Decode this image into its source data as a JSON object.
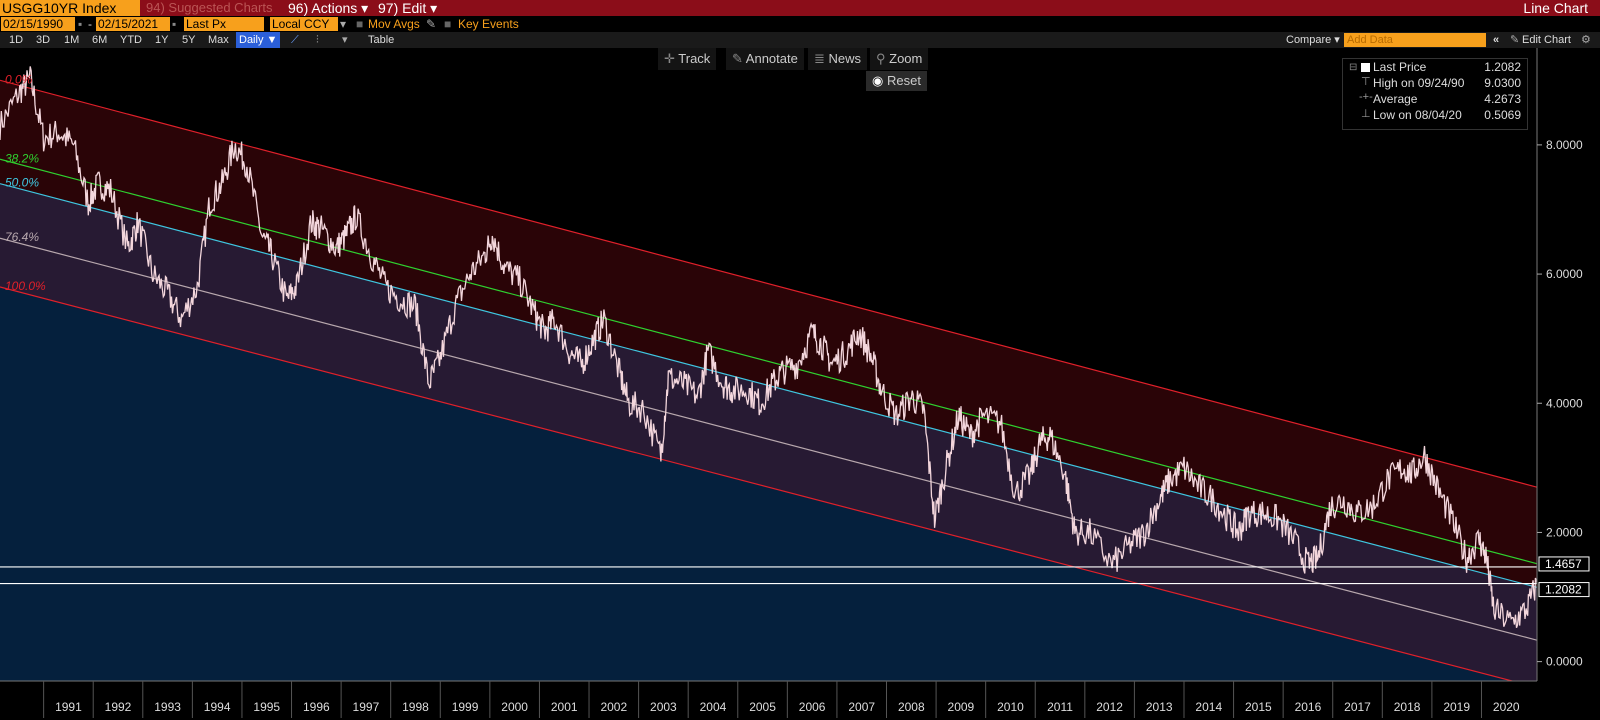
{
  "header": {
    "ticker": "USGG10YR Index",
    "suggested": "94) Suggested Charts",
    "actions": "96) Actions ▾",
    "edit": "97) Edit ▾",
    "chart_type_label": "Line Chart"
  },
  "controls": {
    "start_date": "02/15/1990",
    "end_date": "02/15/2021",
    "field": "Last Px",
    "currency": "Local CCY",
    "mov_avgs": "Mov Avgs",
    "key_events": "Key Events"
  },
  "periods": [
    "1D",
    "3D",
    "1M",
    "6M",
    "YTD",
    "1Y",
    "5Y",
    "Max"
  ],
  "frequency": "Daily ▼",
  "table_label": "Table",
  "compare_label": "Compare ▾",
  "add_data_placeholder": "Add Data",
  "edit_chart": "Edit Chart",
  "tools": {
    "track": "Track",
    "annotate": "Annotate",
    "news": "News",
    "zoom": "Zoom",
    "reset": "Reset"
  },
  "legend": {
    "last_label": "Last Price",
    "last_value": "1.2082",
    "high_label": "High on 09/24/90",
    "high_value": "9.0300",
    "avg_label": "Average",
    "avg_value": "4.2673",
    "low_label": "Low on 08/04/20",
    "low_value": "0.5069"
  },
  "colors": {
    "background": "#000000",
    "header_red": "#8b0d19",
    "field_orange": "#f7a01c",
    "price_line": "#f3d6dc",
    "channel_red": "#e0202a",
    "fib_green": "#2fd12f",
    "fib_cyan": "#3fc6e0",
    "fib_grey": "#b8a8ae"
  },
  "chart_data": {
    "type": "line",
    "series": [
      {
        "x": [
          1990.12,
          1990.5,
          1990.73,
          1991.0,
          1991.3,
          1991.6,
          1991.9,
          1992.1,
          1992.35,
          1992.7,
          1992.9,
          1993.2,
          1993.5,
          1993.78,
          1994.1,
          1994.35,
          1994.6,
          1994.85,
          1995.1,
          1995.4,
          1995.6,
          1995.9,
          1996.1,
          1996.4,
          1996.6,
          1996.9,
          1997.1,
          1997.3,
          1997.6,
          1997.9,
          1998.2,
          1998.5,
          1998.77,
          1999.0,
          1999.3,
          1999.6,
          1999.9,
          2000.05,
          2000.3,
          2000.6,
          2000.9,
          2001.1,
          2001.3,
          2001.6,
          2001.85,
          2002.1,
          2002.3,
          2002.6,
          2002.8,
          2003.1,
          2003.45,
          2003.6,
          2003.9,
          2004.2,
          2004.4,
          2004.7,
          2004.9,
          2005.2,
          2005.45,
          2005.7,
          2005.9,
          2006.2,
          2006.5,
          2006.7,
          2006.9,
          2007.2,
          2007.45,
          2007.7,
          2007.9,
          2008.2,
          2008.5,
          2008.75,
          2008.97,
          2009.2,
          2009.45,
          2009.7,
          2009.95,
          2010.3,
          2010.6,
          2010.9,
          2011.1,
          2011.3,
          2011.6,
          2011.8,
          2012.1,
          2012.55,
          2012.9,
          2013.2,
          2013.5,
          2013.7,
          2014.0,
          2014.3,
          2014.6,
          2014.9,
          2015.1,
          2015.3,
          2015.6,
          2015.9,
          2016.2,
          2016.5,
          2016.7,
          2016.95,
          2017.2,
          2017.5,
          2017.8,
          2018.1,
          2018.4,
          2018.6,
          2018.85,
          2019.1,
          2019.4,
          2019.7,
          2019.95,
          2020.1,
          2020.25,
          2020.6,
          2020.9,
          2021.12
        ],
        "y": [
          8.3,
          8.8,
          9.03,
          8.1,
          8.2,
          8.0,
          7.1,
          7.4,
          7.3,
          6.4,
          6.8,
          6.0,
          5.7,
          5.3,
          5.8,
          7.1,
          7.4,
          8.0,
          7.7,
          6.6,
          6.3,
          5.6,
          5.8,
          6.8,
          6.7,
          6.4,
          6.6,
          6.9,
          6.3,
          5.8,
          5.6,
          5.5,
          4.3,
          4.7,
          5.5,
          6.0,
          6.3,
          6.6,
          6.1,
          5.9,
          5.4,
          5.1,
          5.3,
          4.8,
          4.6,
          5.0,
          5.3,
          4.5,
          4.0,
          3.9,
          3.2,
          4.4,
          4.3,
          4.1,
          4.8,
          4.3,
          4.2,
          4.2,
          4.0,
          4.3,
          4.5,
          4.6,
          5.1,
          4.9,
          4.6,
          4.8,
          5.1,
          4.7,
          4.2,
          3.8,
          4.1,
          3.9,
          2.2,
          3.0,
          3.8,
          3.5,
          3.8,
          3.7,
          2.6,
          2.9,
          3.4,
          3.5,
          2.9,
          2.0,
          2.0,
          1.5,
          1.8,
          2.0,
          2.5,
          2.8,
          3.0,
          2.7,
          2.5,
          2.2,
          2.0,
          2.3,
          2.3,
          2.2,
          1.9,
          1.5,
          1.6,
          2.4,
          2.5,
          2.3,
          2.4,
          2.8,
          3.0,
          2.9,
          3.2,
          2.7,
          2.2,
          1.6,
          1.9,
          1.6,
          0.8,
          0.6,
          0.8,
          1.21
        ]
      }
    ],
    "ylim": [
      -0.3,
      9.5
    ],
    "xlim": [
      1990.12,
      2021.12
    ],
    "y_ticks": [
      "0.0000",
      "2.0000",
      "4.0000",
      "6.0000",
      "8.0000"
    ],
    "x_labels": [
      "1991",
      "1992",
      "1993",
      "1994",
      "1995",
      "1996",
      "1997",
      "1998",
      "1999",
      "2000",
      "2001",
      "2002",
      "2003",
      "2004",
      "2005",
      "2006",
      "2007",
      "2008",
      "2009",
      "2010",
      "2011",
      "2012",
      "2013",
      "2014",
      "2015",
      "2016",
      "2017",
      "2018",
      "2019",
      "2020"
    ],
    "channel": {
      "top": [
        9.0,
        2.7
      ],
      "bottom": [
        5.8,
        -0.4
      ]
    },
    "fib_levels": [
      {
        "label": "0.0%",
        "ratio": 0.0
      },
      {
        "label": "38.2%",
        "ratio": 0.382
      },
      {
        "label": "50.0%",
        "ratio": 0.5
      },
      {
        "label": "76.4%",
        "ratio": 0.764
      },
      {
        "label": "100.0%",
        "ratio": 1.0
      }
    ],
    "hlines": [
      1.4657,
      1.2082
    ],
    "tag_labels": [
      "1.4657",
      "1.2082"
    ],
    "grid": false,
    "legend_position": "top-right"
  }
}
